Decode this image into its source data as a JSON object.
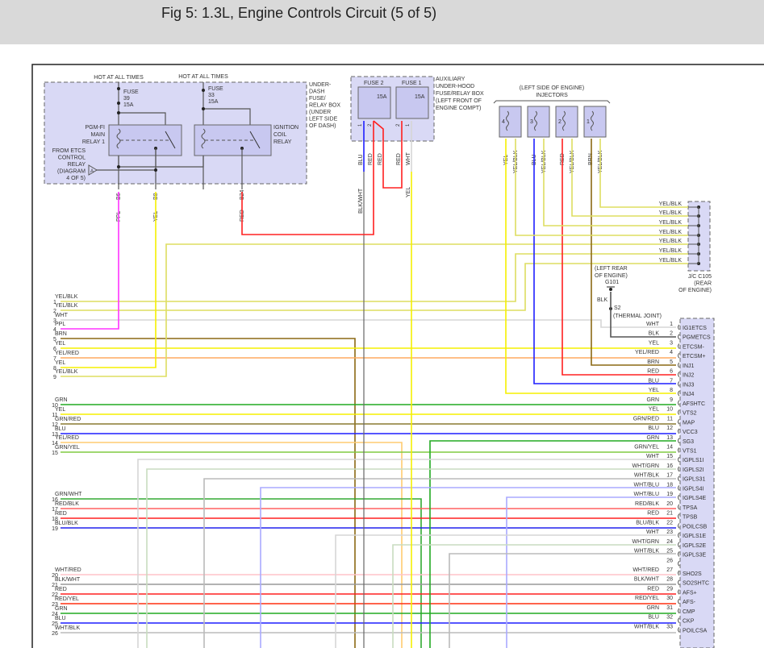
{
  "header": {
    "title": "Fig 5: 1.3L, Engine Controls Circuit (5 of 5)"
  },
  "relay_box": {
    "hot1": "HOT AT ALL TIMES",
    "hot2": "HOT AT ALL TIMES",
    "fuse39": [
      "FUSE",
      "39",
      "15A"
    ],
    "fuse33": [
      "FUSE",
      "33",
      "15A"
    ],
    "relay1": [
      "PGM-FI",
      "MAIN",
      "RELAY 1"
    ],
    "relay2": [
      "IGNITION",
      "COIL",
      "RELAY"
    ],
    "from_etcs": [
      "FROM ETCS",
      "CONTROL",
      "RELAY",
      "(DIAGRAM",
      "4 OF 5)"
    ],
    "connector_a": "A",
    "box_label": [
      "UNDER-",
      "DASH",
      "FUSE/",
      "RELAY BOX",
      "(UNDER",
      "LEFT SIDE",
      "OF DASH)"
    ],
    "pins": [
      {
        "pin": "B6",
        "color": "PPL"
      },
      {
        "pin": "B8",
        "color": "YEL"
      },
      {
        "pin": "B24",
        "color": "RED"
      }
    ]
  },
  "aux_box": {
    "fuse2": "FUSE 2",
    "fuse1": "FUSE 1",
    "fuse2_amp": "15A",
    "fuse1_amp": "15A",
    "box_label": [
      "AUXILIARY",
      "UNDER-HOOD",
      "FUSE/RELAY BOX",
      "(LEFT FRONT OF",
      "ENGINE COMPT)"
    ],
    "pin_nums": [
      "1",
      "2",
      "2",
      "1"
    ],
    "wire_labels": [
      "BLU",
      "RED",
      "RED",
      "RED",
      "WHT"
    ],
    "below_labels": [
      "BLK/WHT",
      "YEL"
    ]
  },
  "injectors": {
    "title": [
      "(LEFT SIDE OF ENGINE)",
      "INJECTORS"
    ],
    "items": [
      {
        "num": "4",
        "pin2": "YEL",
        "pin1": "YEL/BLK"
      },
      {
        "num": "3",
        "pin2": "BLU",
        "pin1": "YEL/BLK"
      },
      {
        "num": "2",
        "pin2": "RED",
        "pin1": "YEL/BLK"
      },
      {
        "num": "1",
        "pin2": "BRN",
        "pin1": "YEL/BLK"
      }
    ]
  },
  "jc": {
    "labels": [
      "YEL/BLK",
      "YEL/BLK",
      "YEL/BLK",
      "YEL/BLK",
      "YEL/BLK",
      "YEL/BLK",
      "YEL/BLK"
    ],
    "name": [
      "J/C C105",
      "(REAR",
      "OF ENGINE)"
    ]
  },
  "ground": {
    "location": [
      "(LEFT REAR",
      "OF ENGINE)"
    ],
    "id": "G101",
    "wire": "BLK",
    "splice": "S2",
    "splice_desc": "(THERMAL JOINT)"
  },
  "left_wires": [
    {
      "num": "1",
      "label": "YEL/BLK",
      "color": "#dede60"
    },
    {
      "num": "2",
      "label": "YEL/BLK",
      "color": "#dede60"
    },
    {
      "num": "3",
      "label": "WHT",
      "color": "#d6d6d6"
    },
    {
      "num": "4",
      "label": "PPL",
      "color": "#ff33ff"
    },
    {
      "num": "5",
      "label": "BRN",
      "color": "#8b6914"
    },
    {
      "num": "6",
      "label": "YEL",
      "color": "#f5f000"
    },
    {
      "num": "7",
      "label": "YEL/RED",
      "color": "#ffaa60"
    },
    {
      "num": "8",
      "label": "YEL",
      "color": "#f5f000"
    },
    {
      "num": "9",
      "label": "YEL/BLK",
      "color": "#dede60"
    },
    {
      "num": "10",
      "label": "GRN",
      "color": "#22aa22"
    },
    {
      "num": "11",
      "label": "YEL",
      "color": "#f5f000"
    },
    {
      "num": "12",
      "label": "GRN/RED",
      "color": "#8a7a30"
    },
    {
      "num": "13",
      "label": "BLU",
      "color": "#1f1fff"
    },
    {
      "num": "14",
      "label": "YEL/RED",
      "color": "#ffcc70"
    },
    {
      "num": "15",
      "label": "GRN/YEL",
      "color": "#80cc40"
    },
    {
      "num": "16",
      "label": "GRN/WHT",
      "color": "#33aa33"
    },
    {
      "num": "17",
      "label": "RED/BLK",
      "color": "#ff6060"
    },
    {
      "num": "18",
      "label": "RED",
      "color": "#ff2020"
    },
    {
      "num": "19",
      "label": "BLU/BLK",
      "color": "#2020ee"
    },
    {
      "num": "20",
      "label": "WHT/RED",
      "color": "#ffc4c8"
    },
    {
      "num": "21",
      "label": "BLK/WHT",
      "color": "#999999"
    },
    {
      "num": "22",
      "label": "RED",
      "color": "#ff2020"
    },
    {
      "num": "23",
      "label": "RED/YEL",
      "color": "#ff3010"
    },
    {
      "num": "24",
      "label": "GRN",
      "color": "#22aa22"
    },
    {
      "num": "25",
      "label": "BLU",
      "color": "#1f1fff"
    },
    {
      "num": "26",
      "label": "WHT/BLK",
      "color": "#bbbbbb"
    }
  ],
  "ecm_pins": [
    {
      "num": "1",
      "wire": "WHT",
      "name": "IG1ETCS",
      "color": "#d6d6d6"
    },
    {
      "num": "2",
      "wire": "BLK",
      "name": "PGMETCS",
      "color": "#555555"
    },
    {
      "num": "3",
      "wire": "YEL",
      "name": "ETCSM-",
      "color": "#f5f000"
    },
    {
      "num": "4",
      "wire": "YEL/RED",
      "name": "ETCSM+",
      "color": "#ffaa60"
    },
    {
      "num": "5",
      "wire": "BRN",
      "name": "INJ1",
      "color": "#8b6914"
    },
    {
      "num": "6",
      "wire": "RED",
      "name": "INJ2",
      "color": "#ff2020"
    },
    {
      "num": "7",
      "wire": "BLU",
      "name": "INJ3",
      "color": "#1f1fff"
    },
    {
      "num": "8",
      "wire": "YEL",
      "name": "INJ4",
      "color": "#f5f000"
    },
    {
      "num": "9",
      "wire": "GRN",
      "name": "AFSHTC",
      "color": "#22aa22"
    },
    {
      "num": "10",
      "wire": "YEL",
      "name": "VTS2",
      "color": "#f5f000"
    },
    {
      "num": "11",
      "wire": "GRN/RED",
      "name": "MAP",
      "color": "#8a7a30"
    },
    {
      "num": "12",
      "wire": "BLU",
      "name": "VCC3",
      "color": "#1f1fff"
    },
    {
      "num": "13",
      "wire": "GRN",
      "name": "SG3",
      "color": "#22aa22"
    },
    {
      "num": "14",
      "wire": "GRN/YEL",
      "name": "VTS1",
      "color": "#80cc40"
    },
    {
      "num": "15",
      "wire": "WHT",
      "name": "IGPLS1I",
      "color": "#d6d6d6"
    },
    {
      "num": "16",
      "wire": "WHT/GRN",
      "name": "IGPLS2I",
      "color": "#c8dcc0"
    },
    {
      "num": "17",
      "wire": "WHT/BLK",
      "name": "IGPLS31",
      "color": "#bbbbbb"
    },
    {
      "num": "18",
      "wire": "WHT/BLU",
      "name": "IGPLS4I",
      "color": "#aaaaff"
    },
    {
      "num": "19",
      "wire": "WHT/BLU",
      "name": "IGPLS4E",
      "color": "#aaaaff"
    },
    {
      "num": "20",
      "wire": "RED/BLK",
      "name": "TPSA",
      "color": "#ff6060"
    },
    {
      "num": "21",
      "wire": "RED",
      "name": "TPSB",
      "color": "#ff2020"
    },
    {
      "num": "22",
      "wire": "BLU/BLK",
      "name": "POILCSB",
      "color": "#2020ee"
    },
    {
      "num": "23",
      "wire": "WHT",
      "name": "IGPLS1E",
      "color": "#d6d6d6"
    },
    {
      "num": "24",
      "wire": "WHT/GRN",
      "name": "IGPLS2E",
      "color": "#c8dcc0"
    },
    {
      "num": "25",
      "wire": "WHT/BLK",
      "name": "IGPLS3E",
      "color": "#bbbbbb"
    },
    {
      "num": "26",
      "wire": "",
      "name": "",
      "color": ""
    },
    {
      "num": "27",
      "wire": "WHT/RED",
      "name": "SHO2S",
      "color": "#ffc4c8"
    },
    {
      "num": "28",
      "wire": "BLK/WHT",
      "name": "SO2SHTC",
      "color": "#999999"
    },
    {
      "num": "29",
      "wire": "RED",
      "name": "AFS+",
      "color": "#ff2020"
    },
    {
      "num": "30",
      "wire": "RED/YEL",
      "name": "AFS-",
      "color": "#ff3010"
    },
    {
      "num": "31",
      "wire": "GRN",
      "name": "CMP",
      "color": "#22aa22"
    },
    {
      "num": "32",
      "wire": "BLU",
      "name": "CKP",
      "color": "#1f1fff"
    },
    {
      "num": "33",
      "wire": "WHT/BLK",
      "name": "POILCSA",
      "color": "#bbbbbb"
    }
  ]
}
